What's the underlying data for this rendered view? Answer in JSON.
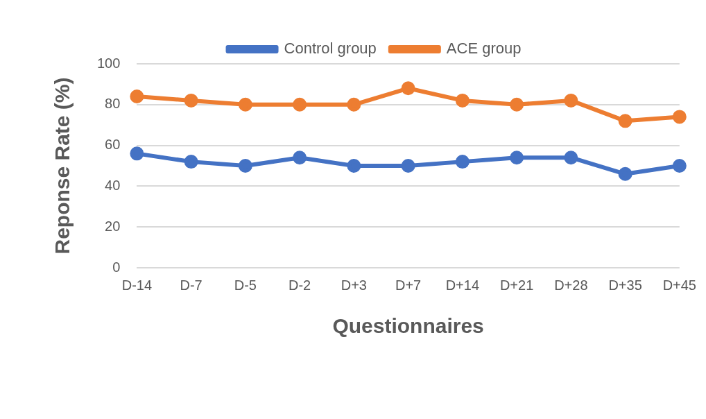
{
  "chart_data": {
    "type": "line",
    "xlabel": "Questionnaires",
    "ylabel": "Reponse Rate (%)",
    "categories": [
      "D-14",
      "D-7",
      "D-5",
      "D-2",
      "D+3",
      "D+7",
      "D+14",
      "D+21",
      "D+28",
      "D+35",
      "D+45"
    ],
    "series": [
      {
        "name": "Control group",
        "color": "#4472c4",
        "values": [
          56,
          52,
          50,
          54,
          50,
          50,
          52,
          54,
          54,
          46,
          50
        ]
      },
      {
        "name": "ACE group",
        "color": "#ed7d31",
        "values": [
          84,
          82,
          80,
          80,
          80,
          88,
          82,
          80,
          82,
          72,
          74
        ]
      }
    ],
    "ylim": [
      0,
      100
    ],
    "yticks": [
      0,
      20,
      40,
      60,
      80,
      100
    ],
    "grid": "y",
    "legend": "top",
    "marker": "circle",
    "line_style": "solid"
  }
}
